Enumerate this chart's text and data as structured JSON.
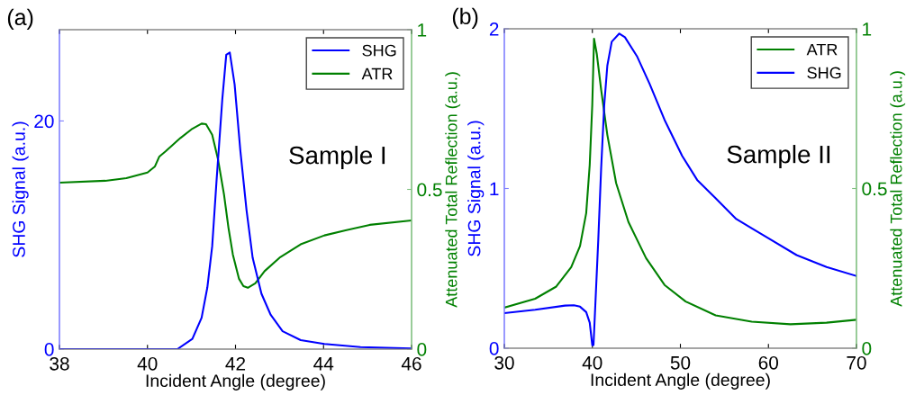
{
  "chart_data": [
    {
      "type": "line",
      "title": "(a)",
      "xlabel": "Incident Angle (degree)",
      "ylabel": "SHG Signal (a.u.)",
      "y2label": "Attenuated Total Reflection (a.u.)",
      "annotations": [
        "Sample I"
      ],
      "xlim": [
        38,
        46
      ],
      "xticks": [
        38,
        40,
        42,
        44,
        46
      ],
      "ylim": [
        0,
        28
      ],
      "yticks": [
        0,
        20
      ],
      "y2lim": [
        0,
        1
      ],
      "y2ticks": [
        0,
        0.5,
        1
      ],
      "grid": false,
      "legend": "top right",
      "line_style": "solid",
      "marker": "none",
      "series": [
        {
          "name": "SHG",
          "color": "#0000ff",
          "x": [
            38,
            40.68,
            41.02,
            41.23,
            41.36,
            41.47,
            41.57,
            41.7,
            41.79,
            41.87,
            41.98,
            42.11,
            42.25,
            42.39,
            42.59,
            42.8,
            43.07,
            43.48,
            44.02,
            44.84,
            46
          ],
          "values": [
            0,
            0,
            0.9,
            2.75,
            5.4,
            9.0,
            14.8,
            21.9,
            25.8,
            26.0,
            23.2,
            17.4,
            12.2,
            8.0,
            4.85,
            3.0,
            1.57,
            0.79,
            0.45,
            0.18,
            0.05
          ]
        },
        {
          "name": "ATR",
          "color": "#008000",
          "axis": "y2",
          "x": [
            38,
            39.04,
            39.52,
            40.0,
            40.17,
            40.27,
            40.41,
            40.75,
            41.02,
            41.23,
            41.33,
            41.47,
            41.6,
            41.74,
            41.84,
            41.94,
            42.08,
            42.18,
            42.28,
            42.45,
            42.66,
            43.0,
            43.48,
            44.02,
            44.5,
            45.05,
            46
          ],
          "values": [
            0.521,
            0.527,
            0.535,
            0.553,
            0.572,
            0.603,
            0.619,
            0.661,
            0.69,
            0.706,
            0.704,
            0.671,
            0.596,
            0.483,
            0.38,
            0.296,
            0.22,
            0.197,
            0.192,
            0.206,
            0.244,
            0.286,
            0.328,
            0.356,
            0.372,
            0.389,
            0.403
          ]
        }
      ]
    },
    {
      "type": "line",
      "title": "(b)",
      "xlabel": "Incident Angle (degree)",
      "ylabel": "SHG Signal (a.u.)",
      "y2label": "Attenuated Total Reflection (a.u.)",
      "annotations": [
        "Sample II"
      ],
      "xlim": [
        30,
        70
      ],
      "xticks": [
        30,
        40,
        50,
        60,
        70
      ],
      "ylim": [
        0,
        2
      ],
      "yticks": [
        0,
        1,
        2
      ],
      "y2lim": [
        0,
        1
      ],
      "y2ticks": [
        0,
        0.5,
        1
      ],
      "grid": false,
      "legend": "top right",
      "line_style": "solid",
      "marker": "none",
      "series": [
        {
          "name": "ATR",
          "color": "#008000",
          "axis": "y2",
          "x": [
            30,
            33.5,
            35.9,
            37.6,
            38.6,
            39.3,
            39.7,
            39.99,
            40.19,
            40.5,
            41.0,
            41.7,
            42.7,
            44.1,
            46.1,
            48.2,
            50.6,
            54.0,
            58.1,
            62.5,
            66.6,
            70
          ],
          "values": [
            0.127,
            0.155,
            0.193,
            0.254,
            0.32,
            0.423,
            0.574,
            0.762,
            0.969,
            0.922,
            0.809,
            0.668,
            0.517,
            0.395,
            0.282,
            0.198,
            0.146,
            0.103,
            0.083,
            0.075,
            0.08,
            0.089
          ]
        },
        {
          "name": "SHG",
          "color": "#0000ff",
          "x": [
            30,
            33.5,
            36.9,
            37.9,
            38.6,
            39.3,
            39.7,
            39.99,
            40.13,
            40.33,
            40.67,
            41.0,
            41.35,
            41.7,
            42.2,
            43.06,
            43.7,
            45.1,
            46.5,
            48.2,
            50.2,
            51.9,
            53.97,
            56.35,
            59.76,
            63.2,
            66.6,
            70
          ],
          "values": [
            0.22,
            0.241,
            0.267,
            0.269,
            0.26,
            0.226,
            0.16,
            0.019,
            0.02,
            0.263,
            0.677,
            1.129,
            1.524,
            1.769,
            1.919,
            1.97,
            1.947,
            1.825,
            1.656,
            1.43,
            1.204,
            1.054,
            0.941,
            0.809,
            0.696,
            0.583,
            0.508,
            0.452
          ]
        }
      ]
    }
  ]
}
